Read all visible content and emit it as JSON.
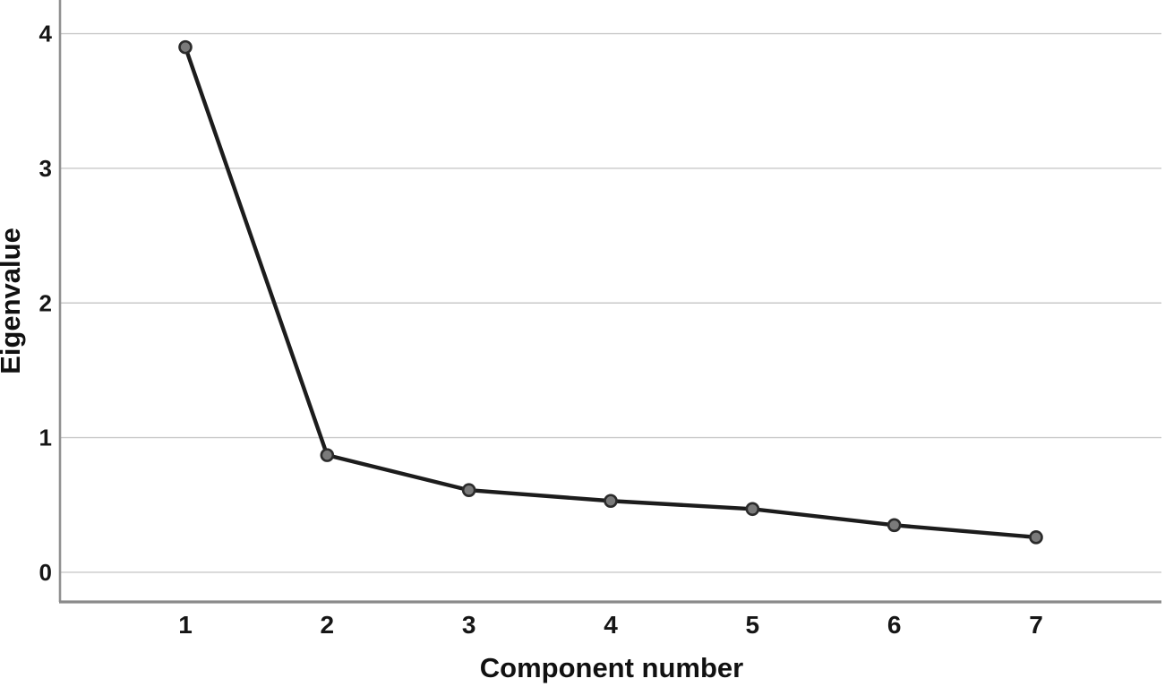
{
  "chart_data": {
    "type": "line",
    "title": "",
    "xlabel": "Component number",
    "ylabel": "Eigenvalue",
    "categories": [
      1,
      2,
      3,
      4,
      5,
      6,
      7
    ],
    "series": [
      {
        "name": "Eigenvalue",
        "values": [
          3.9,
          0.87,
          0.61,
          0.53,
          0.47,
          0.35,
          0.26
        ]
      }
    ],
    "x_tick_labels": [
      "1",
      "2",
      "3",
      "4",
      "5",
      "6",
      "7"
    ],
    "yticks": [
      0,
      1,
      2,
      3,
      4
    ],
    "ylim": [
      -0.22,
      4.25
    ],
    "grid": "horizontal",
    "legend_position": "none",
    "marker": "circle",
    "colors": {
      "line": "#1c1c1c",
      "marker_fill": "#7a7a7a",
      "marker_stroke": "#2b2b2b",
      "gridline": "#c9c9c9",
      "y_axis": "#909090",
      "x_axis": "#8a8a8a",
      "text": "#111111",
      "background": "#ffffff"
    }
  }
}
